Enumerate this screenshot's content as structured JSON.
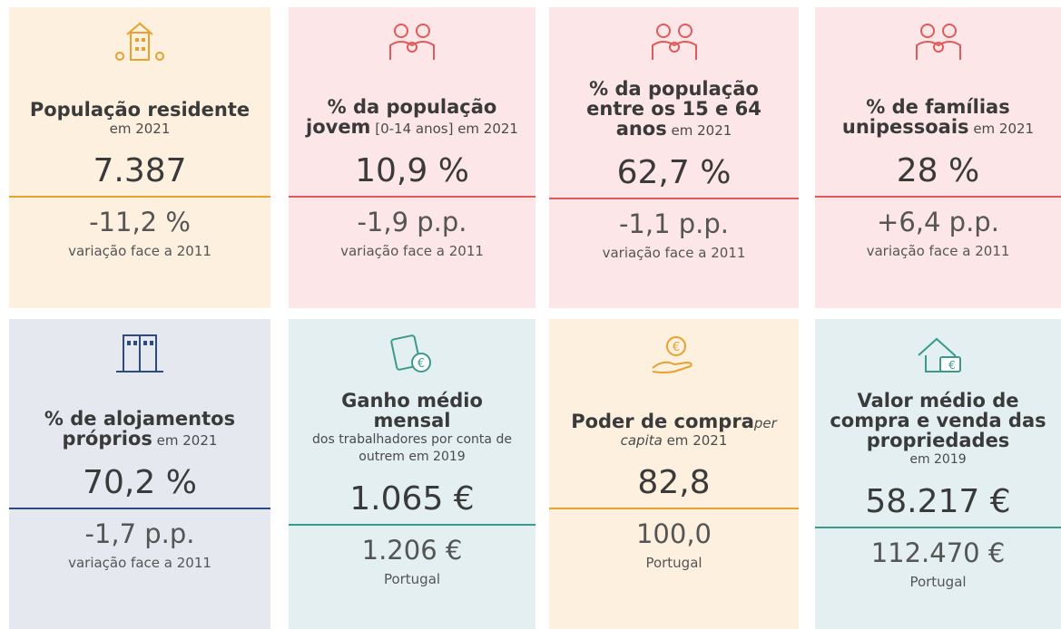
{
  "cards": [
    {
      "title": [
        {
          "text": "População residente",
          "style": "bold"
        },
        {
          "text": " em 2021",
          "style": "normal"
        }
      ],
      "value": "7.387",
      "comparison": "-11,2 %",
      "comparison_label": "variação face a 2011",
      "color": "#e8a02e",
      "background": "#fdf0df"
    },
    {
      "title": [
        {
          "text": "% da população jovem",
          "style": "bold"
        },
        {
          "text": " [0-14 anos] em 2021",
          "style": "normal"
        }
      ],
      "value": "10,9 %",
      "comparison": "-1,9 p.p.",
      "comparison_label": "variação face a 2011",
      "color": "#e05a5a",
      "background": "#fde6e7"
    },
    {
      "title": [
        {
          "text": "% da população entre os 15 e 64 anos",
          "style": "bold"
        },
        {
          "text": " em 2021",
          "style": "normal"
        }
      ],
      "value": "62,7 %",
      "comparison": "-1,1 p.p.",
      "comparison_label": "variação face a 2011",
      "color": "#e05a5a",
      "background": "#fde6e7"
    },
    {
      "title": [
        {
          "text": "% de famílias unipessoais",
          "style": "bold"
        },
        {
          "text": " em 2021",
          "style": "normal"
        }
      ],
      "value": "28 %",
      "comparison": "+6,4 p.p.",
      "comparison_label": "variação face a 2011",
      "color": "#e05a5a",
      "background": "#fde6e7"
    },
    {
      "title": [
        {
          "text": "% de alojamentos próprios",
          "style": "bold"
        },
        {
          "text": " em 2021",
          "style": "normal"
        }
      ],
      "value": "70,2 %",
      "comparison": "-1,7 p.p.",
      "comparison_label": "variação face a 2011",
      "color": "#2e4a86",
      "background": "#e5e9ef"
    },
    {
      "title": [
        {
          "text": "Ganho médio mensal",
          "style": "bold"
        },
        {
          "text": "dos trabalhadores por conta de outrem em 2019",
          "style": "small"
        }
      ],
      "value": "1.065 €",
      "comparison": "1.206 €",
      "comparison_label": "Portugal",
      "color": "#3a9a8c",
      "background": "#e3eff0"
    },
    {
      "title": [
        {
          "text": "Poder de compra",
          "style": "bold"
        },
        {
          "text": "per capita",
          "style": "italic"
        },
        {
          "text": " em 2021",
          "style": "normal"
        }
      ],
      "value": "82,8",
      "comparison": "100,0",
      "comparison_label": "Portugal",
      "color": "#e8a02e",
      "background": "#fdf0df"
    },
    {
      "title": [
        {
          "text": "Valor médio de compra e venda das propriedades",
          "style": "bold"
        },
        {
          "text": "em 2019",
          "style": "small"
        }
      ],
      "value": "58.217 €",
      "comparison": "112.470 €",
      "comparison_label": "Portugal",
      "color": "#3a9a8c",
      "background": "#e3eff0"
    }
  ]
}
